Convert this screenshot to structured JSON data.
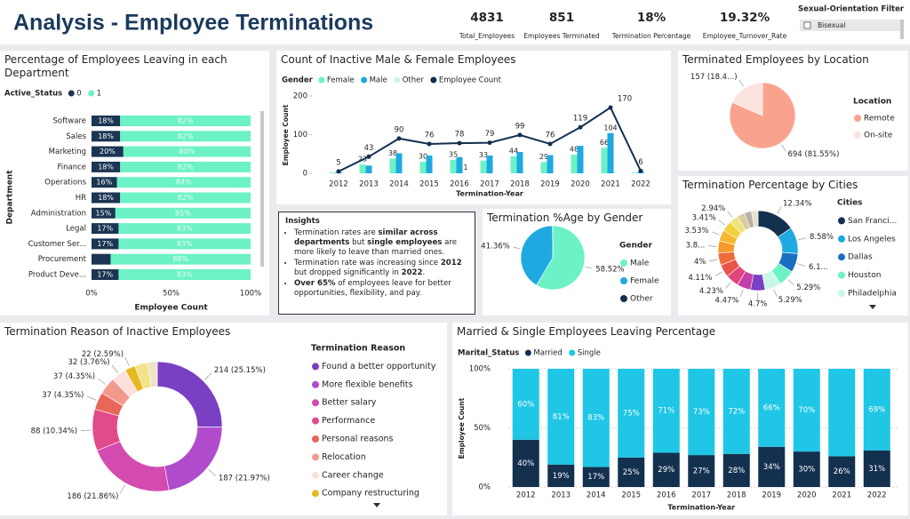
{
  "header": {
    "title": "Analysis - Employee Terminations",
    "kpis": [
      {
        "value": "4831",
        "label": "Total_Employees"
      },
      {
        "value": "851",
        "label": "Employees Terminated"
      },
      {
        "value": "18%",
        "label": "Termination Percentage"
      },
      {
        "value": "19.32%",
        "label": "Employee_Turnover_Rate"
      }
    ]
  },
  "filter": {
    "title": "Sexual-Orientation Filter",
    "options": [
      "Bisexual"
    ]
  },
  "insights": {
    "title": "Insights",
    "bullets": [
      [
        {
          "text": "Termination rates are "
        },
        {
          "text": "similar across departments",
          "bold": true
        },
        {
          "text": " but "
        },
        {
          "text": "single employees",
          "bold": true
        },
        {
          "text": " are more likely to leave than married ones."
        }
      ],
      [
        {
          "text": "Termination rate was increasing since "
        },
        {
          "text": "2012",
          "bold": true
        },
        {
          "text": " but dropped significantly in "
        },
        {
          "text": "2022",
          "bold": true
        },
        {
          "text": "."
        }
      ],
      [
        {
          "text": "Over 65%",
          "bold": true
        },
        {
          "text": " of employees leave for better opportunities, flexibility, and pay."
        }
      ]
    ]
  },
  "chart_data": [
    {
      "type": "bar",
      "orientation": "horizontal",
      "stacked": true,
      "title": "Percentage of Employees Leaving in each Department",
      "legend_title": "Active_Status",
      "x_label": "Employee Count",
      "y_label": "Department",
      "categories": [
        "Software",
        "Sales",
        "Marketing",
        "Finance",
        "Operations",
        "HR",
        "Administration",
        "Legal",
        "Customer Ser...",
        "Procurement",
        "Product Deve..."
      ],
      "series": [
        {
          "name": "0",
          "color": "#1b3552",
          "values": [
            18,
            18,
            20,
            18,
            16,
            18,
            15,
            17,
            17,
            12,
            17
          ],
          "value_labels": [
            "18%",
            "18%",
            "20%",
            "18%",
            "16%",
            "18%",
            "15%",
            "17%",
            "17%",
            null,
            "17%"
          ]
        },
        {
          "name": "1",
          "color": "#6cf2c6",
          "values": [
            82,
            82,
            80,
            82,
            84,
            82,
            85,
            83,
            83,
            88,
            83
          ],
          "value_labels": [
            "82%",
            "82%",
            "80%",
            "82%",
            "84%",
            "82%",
            "85%",
            "83%",
            "83%",
            "88%",
            "83%"
          ]
        }
      ],
      "xlim": [
        0,
        100
      ],
      "xticks": [
        {
          "value": 0,
          "label": "0%"
        },
        {
          "value": 50,
          "label": "50%"
        },
        {
          "value": 100,
          "label": "100%"
        }
      ]
    },
    {
      "type": "combo",
      "title": "Count of Inactive Male & Female Employees",
      "legend_title": "Gender",
      "x_label": "Termination-Year",
      "y_label": "Employee Count",
      "categories": [
        "2012",
        "2013",
        "2014",
        "2015",
        "2016",
        "2017",
        "2018",
        "2019",
        "2020",
        "2021",
        "2022"
      ],
      "series": [
        {
          "name": "Female",
          "type": "bar",
          "color": "#6cf2c6",
          "values": [
            2,
            23,
            38,
            30,
            35,
            33,
            44,
            29,
            48,
            66,
            2
          ],
          "value_labels": [
            null,
            "23",
            "38",
            "30",
            "35",
            "33",
            "44",
            "29",
            "48",
            "66",
            null
          ]
        },
        {
          "name": "Male",
          "type": "bar",
          "color": "#1fa9e1",
          "values": [
            3,
            20,
            52,
            46,
            42,
            46,
            55,
            47,
            71,
            104,
            4
          ],
          "value_labels": [
            null,
            null,
            null,
            null,
            null,
            null,
            null,
            null,
            null,
            "104",
            null
          ]
        },
        {
          "name": "Other",
          "type": "bar",
          "color": "#c9f7e7",
          "values": [
            0,
            0,
            0,
            0,
            1,
            0,
            0,
            0,
            0,
            0,
            0
          ],
          "value_labels": [
            null,
            null,
            null,
            null,
            "1",
            null,
            null,
            null,
            null,
            null,
            null
          ]
        },
        {
          "name": "Employee Count",
          "type": "line",
          "color": "#13304f",
          "values": [
            5,
            43,
            90,
            76,
            78,
            79,
            99,
            76,
            119,
            170,
            6
          ]
        }
      ],
      "ylim": [
        0,
        200
      ],
      "yticks": [
        0,
        100,
        200
      ]
    },
    {
      "type": "pie",
      "title": "Terminated Employees by Location",
      "legend_title": "Location",
      "categories": [
        "Remote",
        "On-site"
      ],
      "values": [
        694,
        157
      ],
      "colors": [
        "#f9a38e",
        "#fbe3de"
      ],
      "value_labels": [
        "694 (81.55%)",
        "157 (18.4...)"
      ]
    },
    {
      "type": "pie",
      "title": "Termination %Age by Gender",
      "legend_title": "Gender",
      "categories": [
        "Male",
        "Female",
        "Other"
      ],
      "values": [
        58.52,
        41.36,
        0.12
      ],
      "colors": [
        "#6cf2c6",
        "#1fa9e1",
        "#13304f"
      ],
      "value_labels": [
        "58.52%",
        "41.36%",
        null
      ]
    },
    {
      "type": "donut",
      "title": "Termination Percentage by Cities",
      "legend_title": "Cities",
      "categories": [
        "San Franci...",
        "Los Angeles",
        "Dallas",
        "Houston",
        "Philadelphia",
        null,
        null,
        null,
        null,
        null,
        null,
        null,
        null,
        null,
        null,
        null,
        null
      ],
      "values": [
        12.34,
        8.58,
        6.11,
        5.29,
        5.29,
        4.7,
        4.47,
        4.23,
        4.11,
        4,
        3.88,
        3.53,
        3.41,
        2.94,
        2.5,
        2.3,
        2.1
      ],
      "value_labels": [
        "12.34%",
        "8.58%",
        "6.1...",
        "5.29%",
        "5.29%",
        "4.7%",
        "4.47%",
        "4.23%",
        "4.11%",
        "4%",
        "3.8...",
        "3.53%",
        "3.41%",
        "2.94%",
        null,
        null,
        null
      ],
      "colors": [
        "#13304f",
        "#1fa9e1",
        "#1b6fc2",
        "#6cf2c6",
        "#c9f7e7",
        "#7b3fc4",
        "#c43fa8",
        "#e2457d",
        "#e8534a",
        "#f06a3c",
        "#f59a2a",
        "#f5b82e",
        "#f2d23a",
        "#efe27a",
        "#dccba0",
        "#b7b2a6",
        "#e6e0cf"
      ]
    },
    {
      "type": "donut",
      "title": "Termination Reason of Inactive Employees",
      "legend_title": "Termination Reason",
      "categories": [
        "Found a better opportunity",
        "More flexible benefits",
        "Better salary",
        "Performance",
        "Personal reasons",
        "Relocation",
        "Career change",
        "Company restructuring",
        null,
        null
      ],
      "values": [
        214,
        187,
        186,
        88,
        37,
        37,
        32,
        22,
        28,
        20
      ],
      "value_labels": [
        "214 (25.15%)",
        "187 (21.97%)",
        "186 (21.86%)",
        "88 (10.34%)",
        "37 (4.35%)",
        "37 (4.35%)",
        "32 (3.76%)",
        "22 (2.59%)",
        null,
        null
      ],
      "colors": [
        "#7b3fc4",
        "#b04ccc",
        "#d44bb0",
        "#e24b8a",
        "#e8665a",
        "#f29a8e",
        "#fbe0dc",
        "#e8b820",
        "#f2e38a",
        "#ece3c8"
      ]
    },
    {
      "type": "bar",
      "orientation": "vertical",
      "stacked": true,
      "title": "Married & Single Employees Leaving Percentage",
      "legend_title": "Marital_Status",
      "x_label": "Termination-Year",
      "y_label": "Employee Count",
      "categories": [
        "2012",
        "2013",
        "2014",
        "2015",
        "2016",
        "2017",
        "2018",
        "2019",
        "2020",
        "2021",
        "2022"
      ],
      "series": [
        {
          "name": "Married",
          "color": "#13304f",
          "values": [
            40,
            19,
            17,
            25,
            29,
            27,
            28,
            34,
            30,
            26,
            31
          ],
          "value_labels": [
            "40%",
            "19%",
            "17%",
            "25%",
            "29%",
            "27%",
            "28%",
            "34%",
            "30%",
            "26%",
            "31%"
          ]
        },
        {
          "name": "Single",
          "color": "#1fc6e6",
          "values": [
            60,
            81,
            83,
            75,
            71,
            73,
            72,
            66,
            70,
            74,
            69
          ],
          "value_labels": [
            "60%",
            "81%",
            "83%",
            "75%",
            "71%",
            "73%",
            "72%",
            "66%",
            "70%",
            null,
            "69%"
          ]
        }
      ],
      "ylim": [
        0,
        100
      ],
      "yticks": [
        {
          "value": 0,
          "label": "0%"
        },
        {
          "value": 50,
          "label": "50%"
        },
        {
          "value": 100,
          "label": "100%"
        }
      ],
      "grid": true
    }
  ]
}
